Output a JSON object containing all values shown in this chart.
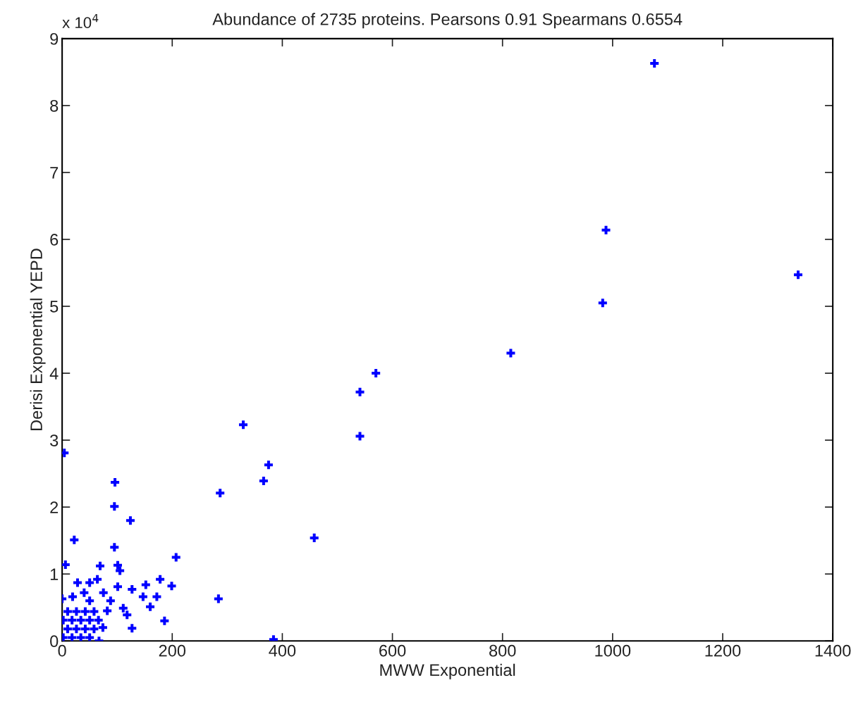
{
  "chart_data": {
    "type": "scatter",
    "title": "Abundance of 2735 proteins. Pearsons 0.91 Spearmans 0.6554",
    "xlabel": "MWW Exponential",
    "ylabel": "Derisi Exponential YEPD",
    "annotations": [
      "x 10$^{4}$"
    ],
    "marker": "cross",
    "xlim": [
      0,
      1400
    ],
    "xticks": [
      0,
      200,
      400,
      600,
      800,
      1000,
      1200,
      1400
    ],
    "ylim": [
      0,
      9
    ],
    "yticks": [
      0,
      1,
      2,
      3,
      4,
      5,
      6,
      7,
      8,
      9
    ],
    "grid": false,
    "series": [
      {
        "color": "#0000ff",
        "x": [
          1076,
          988,
          982,
          1337,
          815,
          570,
          541,
          541,
          329,
          375,
          366,
          287,
          458,
          284,
          384,
          4,
          96,
          95,
          124,
          22,
          6,
          95,
          207,
          69,
          101,
          105,
          186,
          127,
          160,
          152,
          178,
          199,
          172,
          147,
          28,
          64,
          50,
          127,
          101,
          111,
          118,
          88,
          82,
          0,
          19,
          67,
          2,
          18,
          34,
          50,
          10,
          26,
          42,
          58,
          74,
          2,
          18,
          34,
          50,
          66,
          10,
          26,
          42,
          58,
          50,
          40,
          75
        ],
        "values": [
          8.63,
          6.14,
          5.05,
          5.47,
          4.3,
          4.0,
          3.72,
          3.06,
          3.23,
          2.63,
          2.39,
          2.21,
          1.54,
          0.63,
          0.02,
          2.81,
          2.37,
          2.01,
          1.8,
          1.51,
          1.14,
          1.4,
          1.25,
          1.12,
          1.13,
          1.05,
          0.3,
          0.19,
          0.51,
          0.84,
          0.92,
          0.82,
          0.66,
          0.66,
          0.87,
          0.92,
          0.87,
          0.77,
          0.81,
          0.49,
          0.39,
          0.6,
          0.45,
          0.63,
          0.66,
          0.0,
          0.05,
          0.05,
          0.05,
          0.05,
          0.18,
          0.18,
          0.18,
          0.18,
          0.2,
          0.31,
          0.31,
          0.31,
          0.31,
          0.31,
          0.44,
          0.44,
          0.44,
          0.44,
          0.6,
          0.72,
          0.72
        ]
      }
    ]
  }
}
